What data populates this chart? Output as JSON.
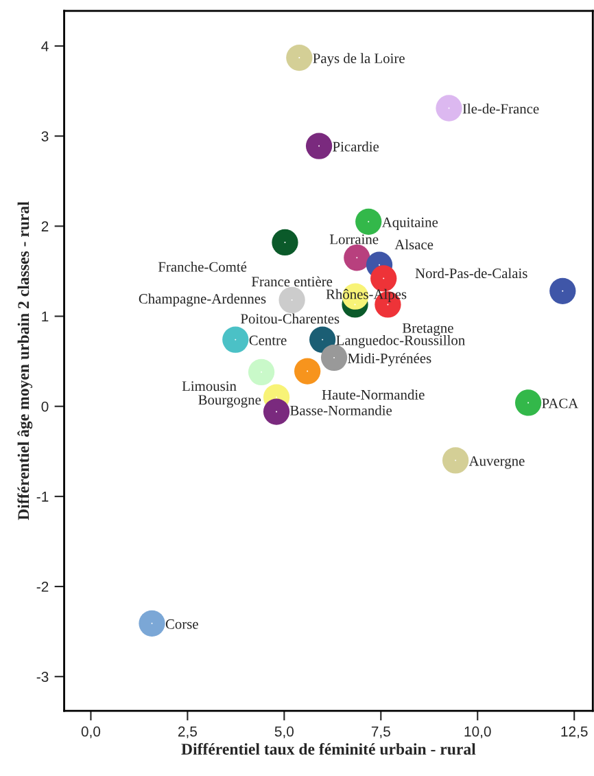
{
  "chart_data": {
    "type": "scatter",
    "xlabel": "Différentiel taux de féminité urbain - rural",
    "ylabel": "Différentiel âge moyen urbain 2 classes - rural",
    "xlim": [
      -0.69,
      12.98
    ],
    "ylim": [
      -3.38,
      4.39
    ],
    "xticks": [
      {
        "value": 0,
        "label": "0,0"
      },
      {
        "value": 2.5,
        "label": "2,5"
      },
      {
        "value": 5,
        "label": "5,0"
      },
      {
        "value": 7.5,
        "label": "7,5"
      },
      {
        "value": 10,
        "label": "10,0"
      },
      {
        "value": 12.5,
        "label": "12,5"
      }
    ],
    "yticks": [
      -3,
      -2,
      -1,
      0,
      1,
      2,
      3,
      4
    ],
    "grid": false,
    "legend": false,
    "marker": "circle",
    "series": [
      {
        "name": "Pays de la Loire",
        "color": "#d4cf96",
        "x": [
          5.39
        ],
        "values": [
          3.87
        ]
      },
      {
        "name": "Ile-de-France",
        "color": "#dcb8f0",
        "x": [
          9.26
        ],
        "values": [
          3.31
        ]
      },
      {
        "name": "Picardie",
        "color": "#7a2a7e",
        "x": [
          5.9
        ],
        "values": [
          2.89
        ]
      },
      {
        "name": "Aquitaine",
        "color": "#33b84a",
        "x": [
          7.18
        ],
        "values": [
          2.05
        ]
      },
      {
        "name": "Franche-Comté",
        "color": "#0b5a2a",
        "x": [
          5.02
        ],
        "values": [
          1.82
        ]
      },
      {
        "name": "Lorraine",
        "color": "#b8407e",
        "x": [
          6.88
        ],
        "values": [
          1.65
        ]
      },
      {
        "name": "Alsace",
        "color": "#3f56a8",
        "x": [
          7.46
        ],
        "values": [
          1.57
        ]
      },
      {
        "name": "Nord-Pas-de-Calais",
        "color": "#ee3338",
        "x": [
          7.57
        ],
        "values": [
          1.42
        ]
      },
      {
        "color": "#3f56a8",
        "x": [
          12.2
        ],
        "values": [
          1.28
        ]
      },
      {
        "name": "France entière",
        "color": "#cccccc",
        "x": [
          5.2
        ],
        "values": [
          1.18
        ]
      },
      {
        "color": "#0b5a2a",
        "x": [
          6.83
        ],
        "values": [
          1.13
        ]
      },
      {
        "name": "Rhônes-Alpes",
        "color": "#f8f377",
        "x": [
          6.84
        ],
        "values": [
          1.22
        ]
      },
      {
        "name": "Bretagne",
        "color": "#ee3338",
        "x": [
          7.68
        ],
        "values": [
          1.13
        ]
      },
      {
        "name": "Centre",
        "color": "#4bc1c6",
        "x": [
          3.74
        ],
        "values": [
          0.74
        ]
      },
      {
        "name": "Languedoc-Roussillon",
        "color": "#1b5e74",
        "x": [
          5.99
        ],
        "values": [
          0.74
        ]
      },
      {
        "name": "Midi-Pyrénées",
        "color": "#999999",
        "x": [
          6.29
        ],
        "values": [
          0.54
        ]
      },
      {
        "name": "Limousin",
        "color": "#c9f9c9",
        "x": [
          4.41
        ],
        "values": [
          0.38
        ]
      },
      {
        "name": "Haute-Normandie",
        "color": "#f7941d",
        "x": [
          5.6
        ],
        "values": [
          0.39
        ]
      },
      {
        "name": "Bourgogne",
        "color": "#f8f377",
        "x": [
          4.8
        ],
        "values": [
          0.1
        ]
      },
      {
        "name": "Basse-Normandie",
        "color": "#7a2a7e",
        "x": [
          4.8
        ],
        "values": [
          -0.06
        ]
      },
      {
        "name": "PACA",
        "color": "#33b84a",
        "x": [
          11.31
        ],
        "values": [
          0.04
        ]
      },
      {
        "name": "Auvergne",
        "color": "#d4cf96",
        "x": [
          9.43
        ],
        "values": [
          -0.6
        ]
      },
      {
        "name": "Corse",
        "color": "#7ba7d6",
        "x": [
          1.58
        ],
        "values": [
          -2.41
        ]
      }
    ],
    "annotations": [
      {
        "text": "Champagne-Ardennes",
        "x": 5.2,
        "y": 1.18
      },
      {
        "text": "Poitou-Charentes",
        "x": 5.2,
        "y": 1.18
      }
    ]
  }
}
